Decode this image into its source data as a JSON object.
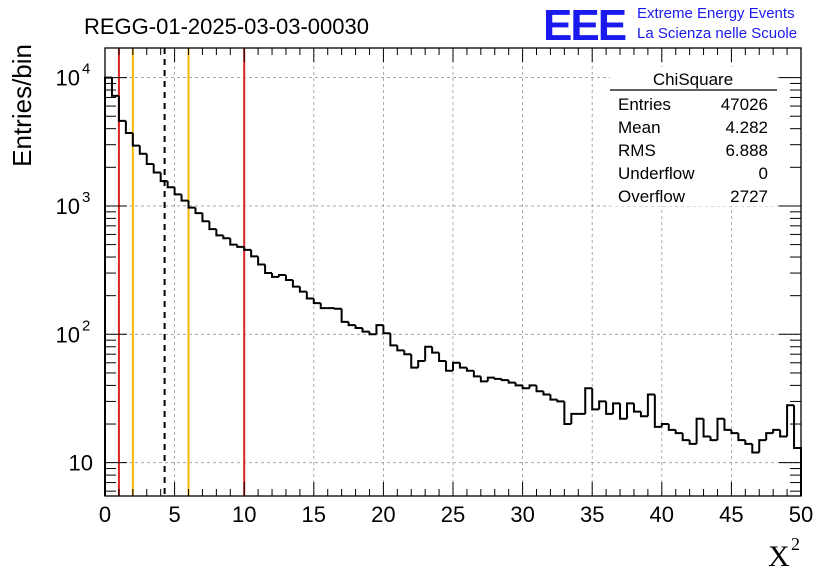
{
  "chart_data": {
    "type": "histogram",
    "title": "REGG-01-2025-03-03-00030",
    "xlabel": "X",
    "xlabel_superscript": "2",
    "ylabel": "Entries/bin",
    "xlim": [
      0,
      50
    ],
    "ylim": [
      5.5,
      17000
    ],
    "yscale": "log",
    "grid": true,
    "bin_width": 0.5,
    "x_ticks": [
      "0",
      "5",
      "10",
      "15",
      "20",
      "25",
      "30",
      "35",
      "40",
      "45",
      "50"
    ],
    "y_ticks": [
      {
        "value": 10,
        "base": "10",
        "exp": ""
      },
      {
        "value": 100,
        "base": "10",
        "exp": "2"
      },
      {
        "value": 1000,
        "base": "10",
        "exp": "3"
      },
      {
        "value": 10000,
        "base": "10",
        "exp": "4"
      }
    ],
    "values": [
      10000,
      7200,
      4600,
      3700,
      2950,
      2550,
      2120,
      1820,
      1560,
      1400,
      1230,
      1100,
      970,
      880,
      760,
      660,
      590,
      560,
      500,
      480,
      455,
      405,
      350,
      300,
      280,
      290,
      265,
      235,
      215,
      190,
      175,
      160,
      160,
      158,
      125,
      118,
      112,
      105,
      100,
      118,
      102,
      82,
      75,
      70,
      55,
      62,
      80,
      72,
      62,
      52,
      60,
      55,
      52,
      47,
      43,
      46,
      45,
      44,
      42,
      40,
      38,
      40,
      36,
      34,
      31,
      30,
      20,
      24,
      24,
      38,
      26,
      30,
      24,
      29,
      22,
      29,
      25,
      23,
      34,
      19,
      20,
      18,
      17,
      15,
      14,
      22,
      16,
      15,
      22,
      18,
      17,
      15,
      14,
      12,
      15,
      17,
      18,
      16,
      28,
      13
    ],
    "vertical_lines": [
      {
        "x": 1,
        "color": "#dd2222",
        "style": "solid"
      },
      {
        "x": 2,
        "color": "#f5b800",
        "style": "solid"
      },
      {
        "x": 4.282,
        "color": "#000000",
        "style": "dashed"
      },
      {
        "x": 6,
        "color": "#f5b800",
        "style": "solid"
      },
      {
        "x": 10,
        "color": "#dd2222",
        "style": "solid"
      }
    ],
    "stats_box": {
      "title": "ChiSquare",
      "rows": [
        {
          "label": "Entries",
          "value": "47026"
        },
        {
          "label": "Mean",
          "value": "4.282"
        },
        {
          "label": "RMS",
          "value": "6.888"
        },
        {
          "label": "Underflow",
          "value": "0"
        },
        {
          "label": "Overflow",
          "value": "2727"
        }
      ]
    }
  },
  "logo": {
    "mark": "EEE",
    "line1": "Extreme Energy Events",
    "line2": "La Scienza nelle Scuole",
    "color": "#1a1aee"
  }
}
